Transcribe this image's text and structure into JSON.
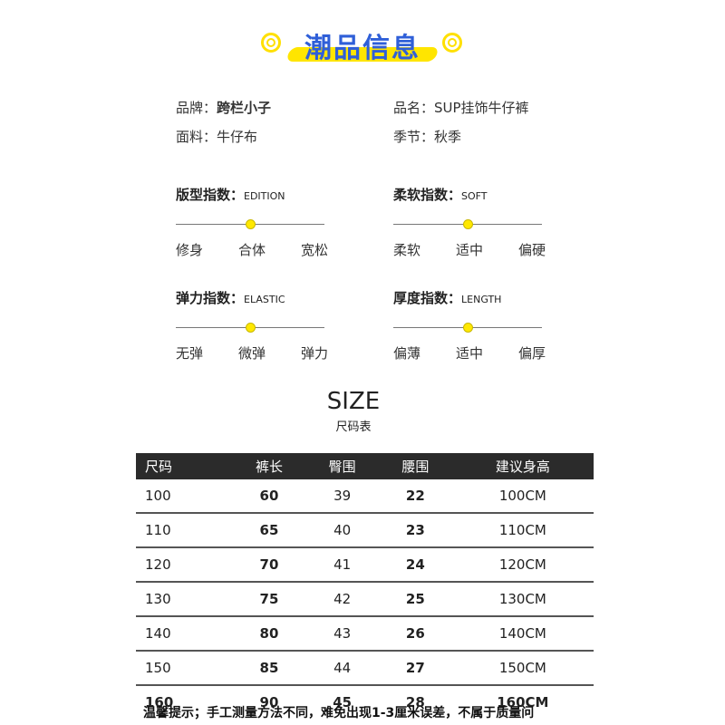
{
  "title": "潮品信息",
  "accent_color": "#2f5fd8",
  "highlight_color": "#ffe500",
  "info": {
    "brand_label": "品牌：",
    "brand": "跨栏小子",
    "name_label": "品名：",
    "name": "SUP挂饰牛仔裤",
    "fabric_label": "面料：",
    "fabric": "牛仔布",
    "season_label": "季节：",
    "season": "秋季"
  },
  "indices": [
    {
      "title": "版型指数：",
      "en": "EDITION",
      "labels": [
        "修身",
        "合体",
        "宽松"
      ],
      "level": 0.5
    },
    {
      "title": "柔软指数：",
      "en": "SOFT",
      "labels": [
        "柔软",
        "适中",
        "偏硬"
      ],
      "level": 0.5
    },
    {
      "title": "弹力指数：",
      "en": "ELASTIC",
      "labels": [
        "无弹",
        "微弹",
        "弹力"
      ],
      "level": 0.5
    },
    {
      "title": "厚度指数：",
      "en": "LENGTH",
      "labels": [
        "偏薄",
        "适中",
        "偏厚"
      ],
      "level": 0.5
    }
  ],
  "size": {
    "title": "SIZE",
    "subtitle": "尺码表",
    "headers": [
      "尺码",
      "裤长",
      "臀围",
      "腰围",
      "建议身高"
    ],
    "rows": [
      [
        "100",
        "60",
        "39",
        "22",
        "100CM"
      ],
      [
        "110",
        "65",
        "40",
        "23",
        "110CM"
      ],
      [
        "120",
        "70",
        "41",
        "24",
        "120CM"
      ],
      [
        "130",
        "75",
        "42",
        "25",
        "130CM"
      ],
      [
        "140",
        "80",
        "43",
        "26",
        "140CM"
      ],
      [
        "150",
        "85",
        "44",
        "27",
        "150CM"
      ],
      [
        "160",
        "90",
        "45",
        "28",
        "160CM"
      ]
    ]
  },
  "note": "温馨提示；手工测量方法不同，难免出现1-3厘米误差，不属于质量问"
}
